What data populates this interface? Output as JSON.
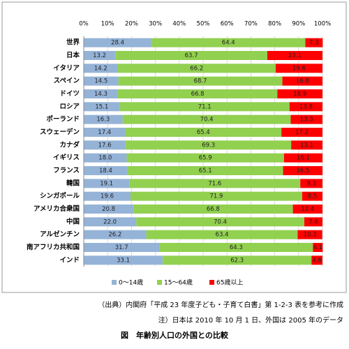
{
  "chart_data": {
    "type": "stacked-bar-horizontal",
    "title": "図　年齢別人口の外国との比較",
    "source": "（出典）内閣府「平成 23 年度子ども・子育て白書」第 1-2-3 表を参考に作成",
    "note": "注）日本は 2010 年 10 月 1 日、外国は 2005 年のデータ",
    "categories": [
      "世界",
      "日本",
      "イタリア",
      "スペイン",
      "ドイツ",
      "ロシア",
      "ポーランド",
      "スウェーデン",
      "カナダ",
      "イギリス",
      "フランス",
      "韓国",
      "シンガポール",
      "アメリカ合衆国",
      "中国",
      "アルゼンチン",
      "南アフリカ共和国",
      "インド"
    ],
    "series": [
      {
        "name": "0～14歳",
        "color": "#95b3d7",
        "values": [
          28.4,
          13.2,
          14.2,
          14.5,
          14.3,
          15.1,
          16.3,
          17.4,
          17.6,
          18.0,
          18.4,
          19.1,
          19.6,
          20.8,
          22.0,
          26.2,
          31.7,
          33.1
        ],
        "value_labels": [
          "28.4",
          "13.2",
          "14.2",
          "14.5",
          "14.3",
          "15.1",
          "16.3",
          "17.4",
          "17.6",
          "18.0",
          "18.4",
          "19.1",
          "19.6",
          "20.8",
          "22.0",
          "26.2",
          "31.7",
          "33.1"
        ]
      },
      {
        "name": "15～64歳",
        "color": "#92d050",
        "values": [
          64.4,
          63.7,
          66.2,
          68.7,
          66.8,
          71.1,
          70.4,
          65.4,
          69.3,
          65.9,
          65.1,
          71.6,
          71.9,
          66.8,
          70.4,
          63.4,
          64.3,
          62.3
        ],
        "value_labels": [
          "64.4",
          "63.7",
          "66.2",
          "68.7",
          "66.8",
          "71.1",
          "70.4",
          "65.4",
          "69.3",
          "65.9",
          "65.1",
          "71.6",
          "71.9",
          "66.8",
          "70.4",
          "63.4",
          "64.3",
          "62.3"
        ]
      },
      {
        "name": "65歳以上",
        "color": "#ff0000",
        "values": [
          7.3,
          23.1,
          19.6,
          16.8,
          18.9,
          13.8,
          13.3,
          17.2,
          13.1,
          16.1,
          16.5,
          9.3,
          8.5,
          12.4,
          7.6,
          10.3,
          4.1,
          4.6
        ],
        "value_labels": [
          "7.3",
          "23.1",
          "19.6",
          "16.8",
          "18.9",
          "13.8",
          "13.3",
          "17.2",
          "13.1",
          "16.1",
          "16.5",
          "9.3",
          "8.5",
          "12.4",
          "7.6",
          "10.3",
          "4.1",
          "4.6"
        ]
      }
    ],
    "xlim": [
      0,
      100
    ],
    "xticks": [
      {
        "value": 0,
        "label": "0%"
      },
      {
        "value": 10,
        "label": "10%"
      },
      {
        "value": 20,
        "label": "20%"
      },
      {
        "value": 30,
        "label": "30%"
      },
      {
        "value": 40,
        "label": "40%"
      },
      {
        "value": 50,
        "label": "50%"
      },
      {
        "value": 60,
        "label": "60%"
      },
      {
        "value": 70,
        "label": "70%"
      },
      {
        "value": 80,
        "label": "80%"
      },
      {
        "value": 90,
        "label": "90%"
      },
      {
        "value": 100,
        "label": "100%"
      }
    ],
    "grid": true
  }
}
